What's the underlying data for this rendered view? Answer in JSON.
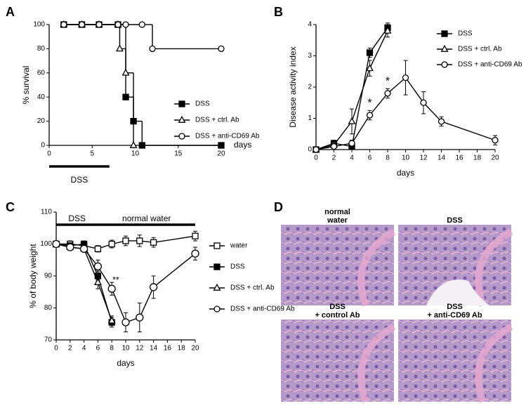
{
  "chart_data": [
    {
      "type": "line",
      "panel": "A",
      "step": true,
      "ylabel": "% survival",
      "xlabel": "days",
      "xlabel_position": "right",
      "xlim": [
        0,
        20
      ],
      "xticks": [
        0,
        5,
        10,
        15,
        20
      ],
      "ylim": [
        0,
        100
      ],
      "yticks": [
        0,
        20,
        40,
        60,
        80,
        100
      ],
      "periods": [
        {
          "text": "DSS",
          "x0": 0,
          "x1": 7
        }
      ],
      "periods_position": "below",
      "series": [
        {
          "name": "DSS",
          "color": "#000000",
          "marker": "square",
          "filled": true,
          "x": [
            1.7,
            3.8,
            5.8,
            8,
            8.9,
            9.8,
            10.8,
            20
          ],
          "values": [
            100,
            100,
            100,
            100,
            40,
            20,
            0,
            0
          ]
        },
        {
          "name": "DSS + ctrl. Ab",
          "color": "#000000",
          "marker": "triangle",
          "filled": false,
          "x": [
            1.7,
            3.8,
            5.8,
            8,
            8.2,
            8.9,
            9.8
          ],
          "values": [
            100,
            100,
            100,
            100,
            80,
            60,
            0
          ]
        },
        {
          "name": "DSS + anti-CD69 Ab",
          "color": "#000000",
          "marker": "circle",
          "filled": false,
          "x": [
            1.7,
            3.8,
            5.8,
            8,
            8.9,
            10.8,
            12,
            20
          ],
          "values": [
            100,
            100,
            100,
            100,
            100,
            100,
            80,
            80
          ]
        }
      ]
    },
    {
      "type": "line",
      "panel": "B",
      "ylabel": "Disease activity index",
      "xlabel": "days",
      "xlabel_position": "below",
      "xlim": [
        0,
        20
      ],
      "xticks": [
        0,
        2,
        4,
        6,
        8,
        10,
        12,
        14,
        16,
        18,
        20
      ],
      "ylim": [
        0,
        4
      ],
      "yticks": [
        0,
        1,
        2,
        3,
        4
      ],
      "asterisks": [
        {
          "text": "*",
          "x": 6,
          "series": 2
        },
        {
          "text": "*",
          "x": 8,
          "series": 2
        }
      ],
      "asterisk_position": "above",
      "series": [
        {
          "name": "DSS",
          "color": "#000000",
          "marker": "square",
          "filled": true,
          "x": [
            0,
            2,
            4,
            6,
            8
          ],
          "values": [
            0,
            0.2,
            0.1,
            3.1,
            3.9
          ],
          "errors": [
            0,
            0.1,
            0.05,
            0.15,
            0.15
          ]
        },
        {
          "name": "DSS + ctrl. Ab",
          "color": "#000000",
          "marker": "triangle",
          "filled": false,
          "x": [
            0,
            2,
            4,
            6,
            8
          ],
          "values": [
            0,
            0.15,
            0.9,
            2.6,
            3.8
          ],
          "errors": [
            0,
            0.1,
            0.4,
            0.25,
            0.2
          ]
        },
        {
          "name": "DSS + anti-CD69 Ab",
          "color": "#000000",
          "marker": "circle",
          "filled": false,
          "x": [
            0,
            2,
            4,
            6,
            8,
            10,
            12,
            14,
            20
          ],
          "values": [
            0,
            0.1,
            0.2,
            1.1,
            1.8,
            2.3,
            1.5,
            0.9,
            0.3
          ],
          "errors": [
            0,
            0.1,
            0.1,
            0.15,
            0.15,
            0.55,
            0.35,
            0.15,
            0.15
          ]
        }
      ]
    },
    {
      "type": "line",
      "panel": "C",
      "ylabel": "% of body weight",
      "xlabel": "days",
      "xlabel_position": "below",
      "xlim": [
        0,
        20
      ],
      "xticks": [
        0,
        2,
        4,
        6,
        8,
        10,
        12,
        14,
        16,
        18,
        20
      ],
      "ylim": [
        70,
        110
      ],
      "yticks": [
        70,
        80,
        90,
        100,
        110
      ],
      "periods": [
        {
          "text": "DSS",
          "x0": 0,
          "x1": 6
        },
        {
          "text": "normal water",
          "x0": 6,
          "x1": 20
        }
      ],
      "periods_position": "top",
      "asterisks": [
        {
          "text": "**",
          "x": 8,
          "series": 3
        }
      ],
      "asterisk_position": "right",
      "series": [
        {
          "name": "water",
          "color": "#000000",
          "marker": "square",
          "filled": false,
          "x": [
            0,
            2,
            4,
            6,
            8,
            10,
            12,
            14,
            20
          ],
          "values": [
            100,
            100,
            99.5,
            98.5,
            100,
            101,
            101,
            100.5,
            102.5
          ],
          "errors": [
            0.5,
            1,
            1,
            1,
            1.2,
            1.5,
            1.8,
            1.5,
            1.5
          ]
        },
        {
          "name": "DSS",
          "color": "#000000",
          "marker": "square",
          "filled": true,
          "x": [
            0,
            2,
            4,
            6,
            8
          ],
          "values": [
            100,
            99.5,
            100,
            90,
            75.5
          ],
          "errors": [
            0.5,
            1,
            1,
            1.5,
            1.5
          ]
        },
        {
          "name": "DSS + ctrl. Ab",
          "color": "#000000",
          "marker": "triangle",
          "filled": false,
          "x": [
            0,
            2,
            4,
            6,
            8
          ],
          "values": [
            100,
            99,
            98.5,
            88,
            76
          ],
          "errors": [
            0.5,
            1,
            1,
            2,
            1.5
          ]
        },
        {
          "name": "DSS + anti-CD69 Ab",
          "color": "#000000",
          "marker": "circle",
          "filled": false,
          "x": [
            0,
            2,
            4,
            6,
            8,
            10,
            12,
            14,
            20
          ],
          "values": [
            100,
            99,
            98.5,
            93,
            86,
            75.5,
            77,
            86.5,
            97
          ],
          "errors": [
            0.5,
            1,
            1,
            2,
            2,
            3,
            4.5,
            3.5,
            2
          ]
        }
      ]
    }
  ],
  "panel_d": {
    "panel": "D",
    "images": [
      {
        "label": [
          "normal",
          "water"
        ]
      },
      {
        "label": [
          "DSS"
        ]
      },
      {
        "label": [
          "DSS",
          "+ control Ab"
        ]
      },
      {
        "label": [
          "DSS",
          "+ anti-CD69 Ab"
        ]
      }
    ]
  }
}
